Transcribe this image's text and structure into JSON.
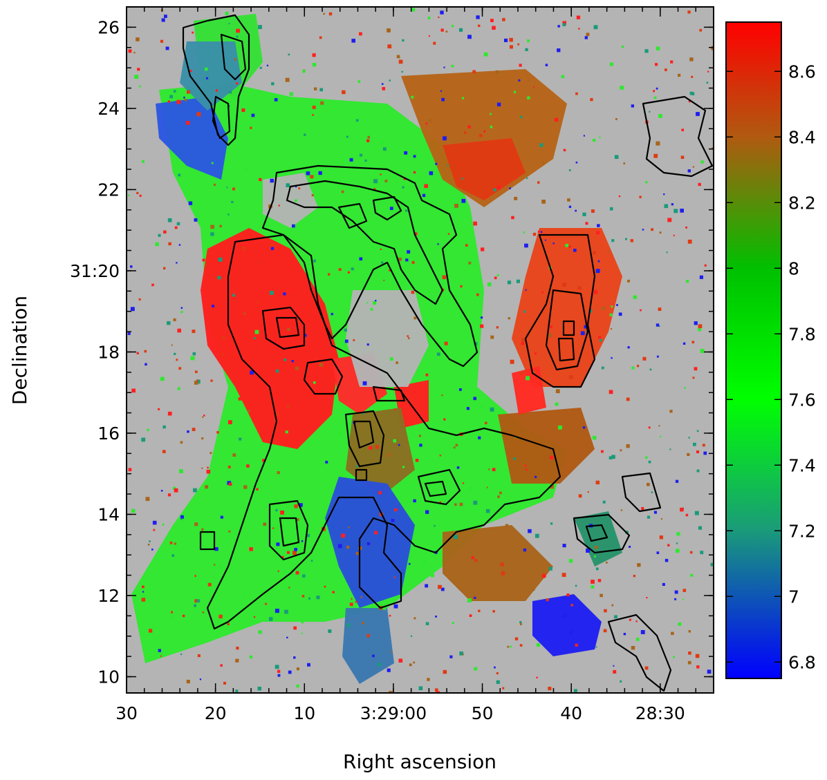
{
  "chart_data": {
    "type": "heatmap",
    "xlabel": "Right ascension",
    "ylabel": "Declination",
    "x_tick_labels": [
      "30",
      "20",
      "10",
      "3:29:00",
      "50",
      "40",
      "28:30"
    ],
    "x_tick_values_seconds_before_3h29m30s": [
      0,
      10,
      20,
      30,
      40,
      50,
      60
    ],
    "xlim_seconds_before_3h29m30s": [
      0,
      66
    ],
    "y_tick_labels": [
      "10",
      "12",
      "14",
      "16",
      "18",
      "31:20",
      "22",
      "24",
      "26"
    ],
    "y_tick_values_arcmin_above_31deg": [
      10,
      12,
      14,
      16,
      18,
      20,
      22,
      24,
      26
    ],
    "ylim_arcmin_above_31deg": [
      9.6,
      26.5
    ],
    "colorbar": {
      "range": [
        6.75,
        8.75
      ],
      "tick_labels": [
        "6.8",
        "7",
        "7.2",
        "7.4",
        "7.6",
        "7.8",
        "8",
        "8.2",
        "8.4",
        "8.6"
      ],
      "tick_values": [
        6.8,
        7.0,
        7.2,
        7.4,
        7.6,
        7.8,
        8.0,
        8.2,
        8.4,
        8.6
      ],
      "colormap_stops": [
        {
          "value": 6.75,
          "color": "#0000ff"
        },
        {
          "value": 7.2,
          "color": "#1a9a7a"
        },
        {
          "value": 7.6,
          "color": "#00ff00"
        },
        {
          "value": 8.0,
          "color": "#00c000"
        },
        {
          "value": 8.4,
          "color": "#b05a10"
        },
        {
          "value": 8.75,
          "color": "#ff0000"
        }
      ]
    },
    "background_color": "#b4b4b4",
    "contour_color": "#000000",
    "grid": false,
    "legend": "colorbar-right"
  }
}
